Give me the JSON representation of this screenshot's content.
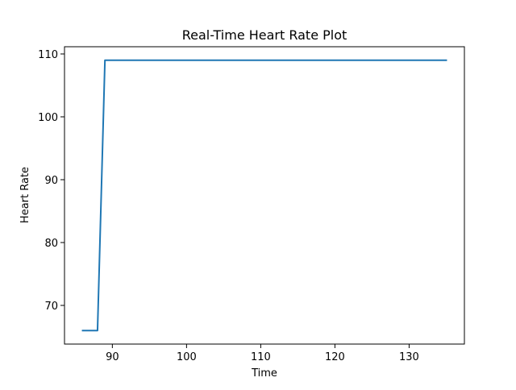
{
  "chart_data": {
    "type": "line",
    "title": "Real-Time Heart Rate Plot",
    "xlabel": "Time",
    "ylabel": "Heart Rate",
    "xlim": [
      83.55,
      137.45
    ],
    "ylim": [
      63.85,
      111.15
    ],
    "xticks": [
      90,
      100,
      110,
      120,
      130
    ],
    "yticks": [
      70,
      80,
      90,
      100,
      110
    ],
    "grid": false,
    "series": [
      {
        "color": "#1f77b4",
        "x": [
          86,
          87,
          88,
          89,
          135
        ],
        "y": [
          66,
          66,
          66,
          109,
          109
        ]
      }
    ]
  }
}
